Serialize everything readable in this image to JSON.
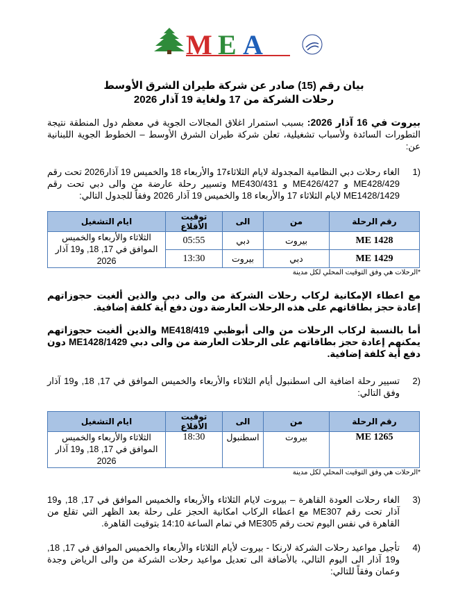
{
  "logo": {
    "brand": "MEA",
    "alliance": "SKYTEAM",
    "colors": {
      "cedar": "#2e8b3a",
      "m": "#d12b2b",
      "e": "#2e8b3a",
      "a": "#1f5fb8"
    }
  },
  "title": {
    "line1": "بيان رقم (15) صادر عن شركة طيران الشرق الأوسط",
    "line2": "رحلات الشركة من 17 ولغاية 19 آذار 2026"
  },
  "intro": {
    "lead": "بيروت في 16 آذار 2026:",
    "text": " بسبب استمرار اغلاق المجالات الجوية في معظم دول المنطقة نتيجة التطورات السائدة ولأسباب تشغيلية، تعلن شركة طيران الشرق الأوسط – الخطوط الجوية اللبنانية عن:"
  },
  "items": [
    {
      "num": "1)",
      "text": "الغاء رحلات دبي النظامية المجدولة لايام الثلاثاء17 والأربعاء 18 والخميس 19 آذار2026 تحت رقم ME428/429 و ME426/427 و ME430/431 وتسيير رحلة عارضة من والى دبي تحت رقم ME1428/1429 لايام الثلاثاء 17 والأربعاء 18 والخميس 19 آذار 2026 وفقاً للجدول التالي:"
    },
    {
      "num": "2)",
      "text": "تسيير رحلة اضافية الى اسطنبول أيام الثلاثاء والأربعاء والخميس الموافق في 17, 18, و19 آذار وفق التالي:"
    },
    {
      "num": "3)",
      "text": "الغاء رحلات العودة القاهرة – بيروت لايام الثلاثاء والأربعاء والخميس الموافق في 17, 18, و19 آذار تحت رقم ME307 مع اعطاء الركاب امكانية الحجز على رحلة بعد الظهر التي تقلع من القاهرة في نفس اليوم تحت رقم ME305 في تمام الساعة 14:10 بتوقيت القاهرة."
    },
    {
      "num": "4)",
      "text": "تأجيل مواعيد رحلات الشركة لارنكا - بيروت لأيام الثلاثاء والأربعاء والخميس الموافق في 17, 18, و19 آذار الى اليوم التالي، بالأضافة الى تعديل مواعيد رحلات الشركة من والى الرياض وجدة وعمان وفقاً للتالي:"
    }
  ],
  "table_headers": [
    "رقم الرحلة",
    "من",
    "الى",
    "توقيت الأقلاع",
    "ايام التشغيل"
  ],
  "table1": {
    "rows": [
      {
        "flight": "ME 1428",
        "from": "بيروت",
        "to": "دبي",
        "time": "05:55"
      },
      {
        "flight": "ME 1429",
        "from": "دبي",
        "to": "بيروت",
        "time": "13:30"
      }
    ],
    "days": "الثلاثاء والأربعاء والخميس الموافق في 17, 18, و19 آذار 2026"
  },
  "table2": {
    "rows": [
      {
        "flight": "ME 1265",
        "from": "بيروت",
        "to": "اسطنبول",
        "time": "18:30"
      }
    ],
    "days": "الثلاثاء والأربعاء والخميس الموافق في 17, 18, و19 آذار 2026"
  },
  "footnote": "*الرحلات هي وفق التوقيت المحلي لكل مدينة",
  "notice1": "مع اعطاء الإمكانية لركاب رحلات الشركة من والى دبي والذين ألغيت حجوزاتهم إعادة حجز بطاقاتهم على هذه الرحلات العارضة دون دفع أية كلفة إضافية.",
  "notice2": "أما بالنسبة لركاب الرحلات من والى أبوظبي ME418/419 والذين ألغيت حجوزاتهم يمكنهم إعادة حجز بطاقاتهم على الرحلات العارضة من والى دبي ME1428/1429 دون دفع أية كلفة إضافية."
}
